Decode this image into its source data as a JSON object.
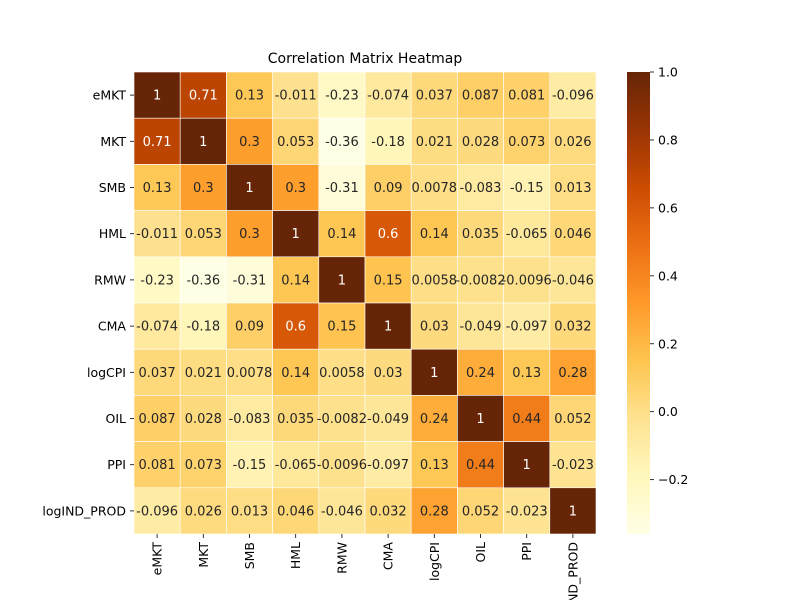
{
  "chart_data": {
    "type": "heatmap",
    "title": "Correlation Matrix Heatmap",
    "xlabel": "",
    "ylabel": "",
    "row_labels": [
      "eMKT",
      "MKT",
      "SMB",
      "HML",
      "RMW",
      "CMA",
      "logCPI",
      "OIL",
      "PPI",
      "logIND_PROD"
    ],
    "col_labels": [
      "eMKT",
      "MKT",
      "SMB",
      "HML",
      "RMW",
      "CMA",
      "logCPI",
      "OIL",
      "PPI",
      "logIND_PROD"
    ],
    "values": [
      [
        1,
        0.71,
        0.13,
        -0.011,
        -0.23,
        -0.074,
        0.037,
        0.087,
        0.081,
        -0.096
      ],
      [
        0.71,
        1,
        0.3,
        0.053,
        -0.36,
        -0.18,
        0.021,
        0.028,
        0.073,
        0.026
      ],
      [
        0.13,
        0.3,
        1,
        0.3,
        -0.31,
        0.09,
        0.0078,
        -0.083,
        -0.15,
        0.013
      ],
      [
        -0.011,
        0.053,
        0.3,
        1,
        0.14,
        0.6,
        0.14,
        0.035,
        -0.065,
        0.046
      ],
      [
        -0.23,
        -0.36,
        -0.31,
        0.14,
        1,
        0.15,
        0.0058,
        -0.0082,
        -0.0096,
        -0.046
      ],
      [
        -0.074,
        -0.18,
        0.09,
        0.6,
        0.15,
        1,
        0.03,
        -0.049,
        -0.097,
        0.032
      ],
      [
        0.037,
        0.021,
        0.0078,
        0.14,
        0.0058,
        0.03,
        1,
        0.24,
        0.13,
        0.28
      ],
      [
        0.087,
        0.028,
        -0.083,
        0.035,
        -0.0082,
        -0.049,
        0.24,
        1,
        0.44,
        0.052
      ],
      [
        0.081,
        0.073,
        -0.15,
        -0.065,
        -0.0096,
        -0.097,
        0.13,
        0.44,
        1,
        -0.023
      ],
      [
        -0.096,
        0.026,
        0.013,
        0.046,
        -0.046,
        0.032,
        0.28,
        0.052,
        -0.023,
        1
      ]
    ],
    "value_labels": [
      [
        "1",
        "0.71",
        "0.13",
        "-0.011",
        "-0.23",
        "-0.074",
        "0.037",
        "0.087",
        "0.081",
        "-0.096"
      ],
      [
        "0.71",
        "1",
        "0.3",
        "0.053",
        "-0.36",
        "-0.18",
        "0.021",
        "0.028",
        "0.073",
        "0.026"
      ],
      [
        "0.13",
        "0.3",
        "1",
        "0.3",
        "-0.31",
        "0.09",
        "0.0078",
        "-0.083",
        "-0.15",
        "0.013"
      ],
      [
        "-0.011",
        "0.053",
        "0.3",
        "1",
        "0.14",
        "0.6",
        "0.14",
        "0.035",
        "-0.065",
        "0.046"
      ],
      [
        "-0.23",
        "-0.36",
        "-0.31",
        "0.14",
        "1",
        "0.15",
        "0.0058",
        "-0.0082",
        "-0.0096",
        "-0.046"
      ],
      [
        "-0.074",
        "-0.18",
        "0.09",
        "0.6",
        "0.15",
        "1",
        "0.03",
        "-0.049",
        "-0.097",
        "0.032"
      ],
      [
        "0.037",
        "0.021",
        "0.0078",
        "0.14",
        "0.0058",
        "0.03",
        "1",
        "0.24",
        "0.13",
        "0.28"
      ],
      [
        "0.087",
        "0.028",
        "-0.083",
        "0.035",
        "-0.0082",
        "-0.049",
        "0.24",
        "1",
        "0.44",
        "0.052"
      ],
      [
        "0.081",
        "0.073",
        "-0.15",
        "-0.065",
        "-0.0096",
        "-0.097",
        "0.13",
        "0.44",
        "1",
        "-0.023"
      ],
      [
        "-0.096",
        "0.026",
        "0.013",
        "0.046",
        "-0.046",
        "0.032",
        "0.28",
        "0.052",
        "-0.023",
        "1"
      ]
    ],
    "colorbar": {
      "vmin": -0.36,
      "vmax": 1.0,
      "ticks": [
        -0.2,
        0.0,
        0.2,
        0.4,
        0.6,
        0.8,
        1.0
      ],
      "tick_labels": [
        "−0.2",
        "0.0",
        "0.2",
        "0.4",
        "0.6",
        "0.8",
        "1.0"
      ],
      "colormap": "YlOrBr",
      "colors": [
        "#ffffe5",
        "#fff7bc",
        "#fee391",
        "#fec44f",
        "#fe9929",
        "#ec7014",
        "#cc4c02",
        "#993404",
        "#662506"
      ]
    },
    "legend": "colorbar-right",
    "grid": true,
    "grid_color": "#ffffff"
  }
}
